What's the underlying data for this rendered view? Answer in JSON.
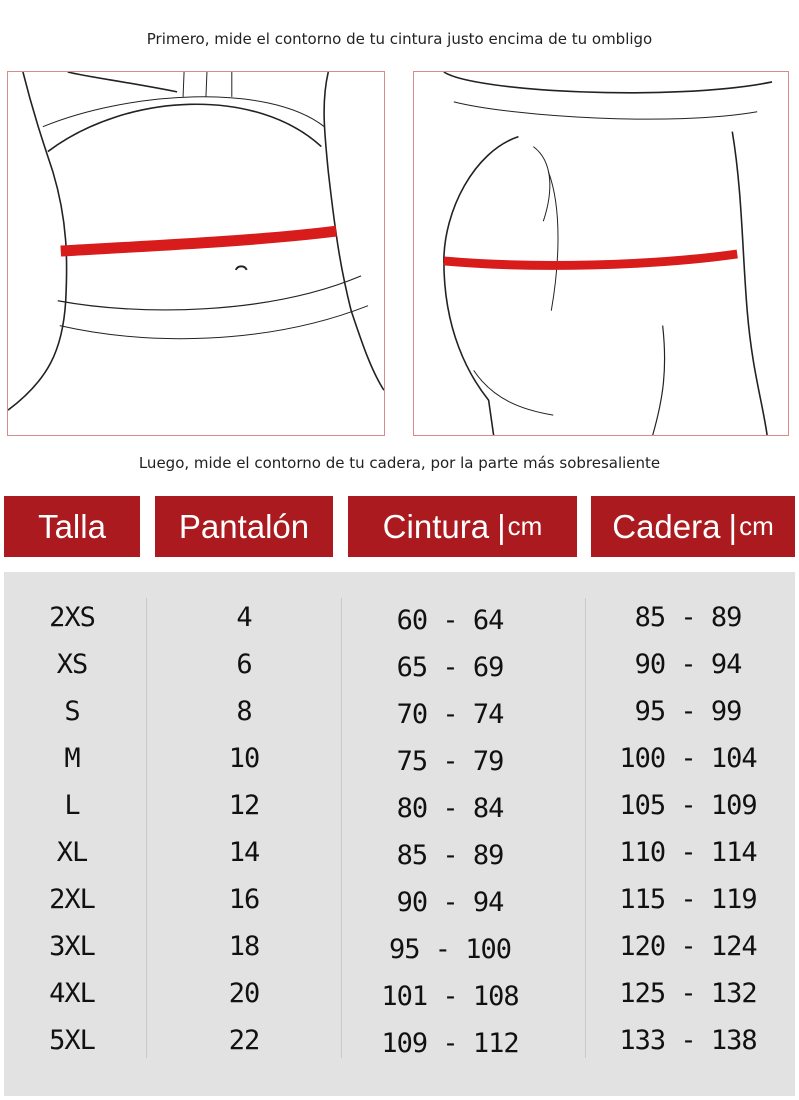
{
  "instructions": {
    "top": "Primero, mide el contorno de tu cintura justo encima de tu ombligo",
    "bottom": "Luego, mide el contorno de tu cadera, por la parte más sobresaliente"
  },
  "colors": {
    "accent": "#aa1a1e",
    "measure_line": "#d81b1b",
    "table_bg": "#e2e2e2"
  },
  "headers": [
    {
      "label": "Talla",
      "unit": ""
    },
    {
      "label": "Pantalón",
      "unit": ""
    },
    {
      "label": "Cintura",
      "unit": "cm"
    },
    {
      "label": "Cadera",
      "unit": "cm"
    }
  ],
  "rows": [
    [
      "2XS",
      "4",
      "60 - 64",
      "85 - 89"
    ],
    [
      "XS",
      "6",
      "65 - 69",
      "90 - 94"
    ],
    [
      "S",
      "8",
      "70 - 74",
      "95 - 99"
    ],
    [
      "M",
      "10",
      "75 - 79",
      "100 - 104"
    ],
    [
      "L",
      "12",
      "80 - 84",
      "105 - 109"
    ],
    [
      "XL",
      "14",
      "85 - 89",
      "110 - 114"
    ],
    [
      "2XL",
      "16",
      "90 - 94",
      "115 - 119"
    ],
    [
      "3XL",
      "18",
      "95 - 100",
      "120 - 124"
    ],
    [
      "4XL",
      "20",
      "101 - 108",
      "125 - 132"
    ],
    [
      "5XL",
      "22",
      "109 - 112",
      "133 - 138"
    ]
  ]
}
